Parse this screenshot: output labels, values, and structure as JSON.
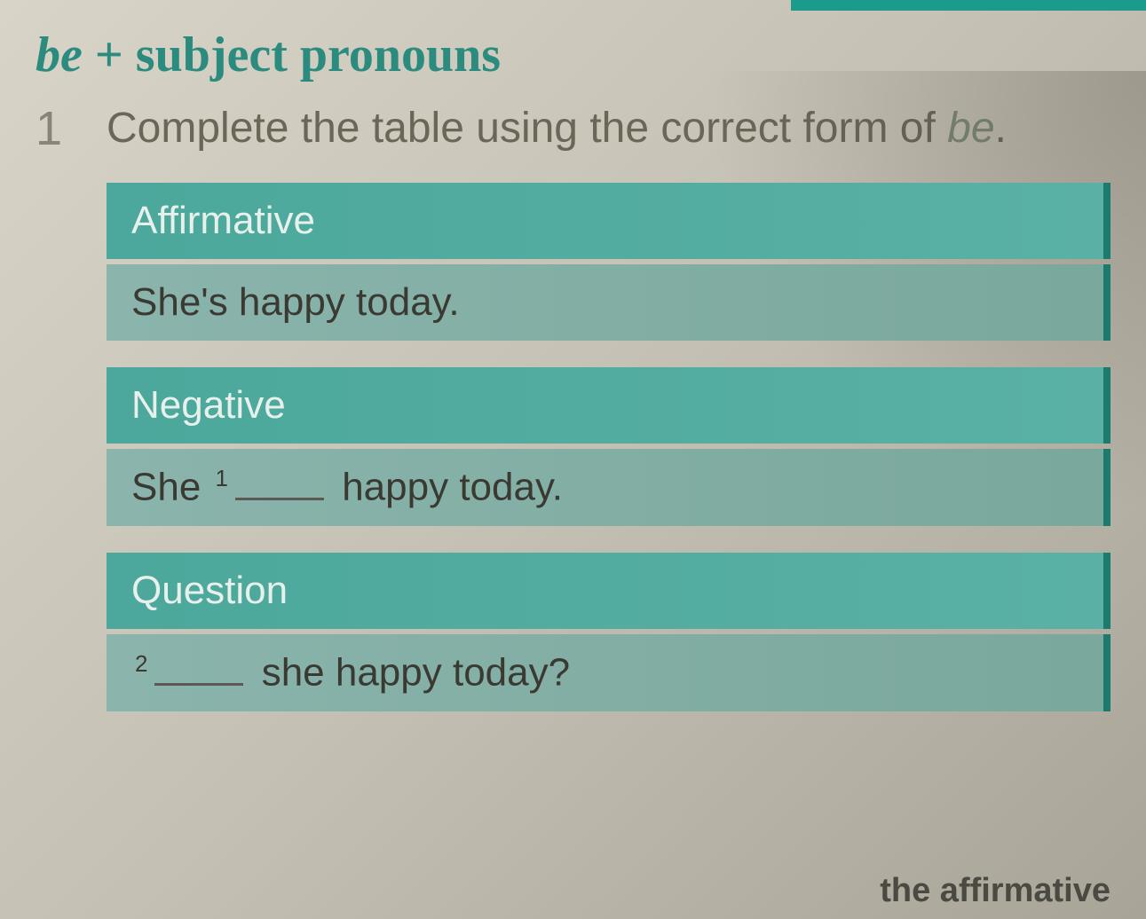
{
  "title": {
    "italic_part": "be",
    "plus": " + ",
    "rest": "subject pronouns"
  },
  "exercise": {
    "number": "1",
    "instruction_part1": "Complete the table using the correct form of ",
    "instruction_italic": "be",
    "instruction_end": "."
  },
  "table": {
    "sections": [
      {
        "header": "Affirmative",
        "content_parts": {
          "prefix": "She",
          "answer": "'s",
          "suffix": " happy today."
        }
      },
      {
        "header": "Negative",
        "content_parts": {
          "prefix": "She ",
          "sup": "1",
          "suffix": " happy today."
        }
      },
      {
        "header": "Question",
        "content_parts": {
          "sup": "2",
          "suffix": " she happy today?"
        }
      }
    ]
  },
  "bottom_fragment": "the affirmative",
  "colors": {
    "title_color": "#2a8b7e",
    "header_bg": "#4ca89c",
    "content_bg": "#8ab4ac",
    "border_accent": "#1a7b6e",
    "page_bg": "#d8d4c8",
    "text_color": "#3a3a32",
    "muted_text": "#6a6658"
  }
}
